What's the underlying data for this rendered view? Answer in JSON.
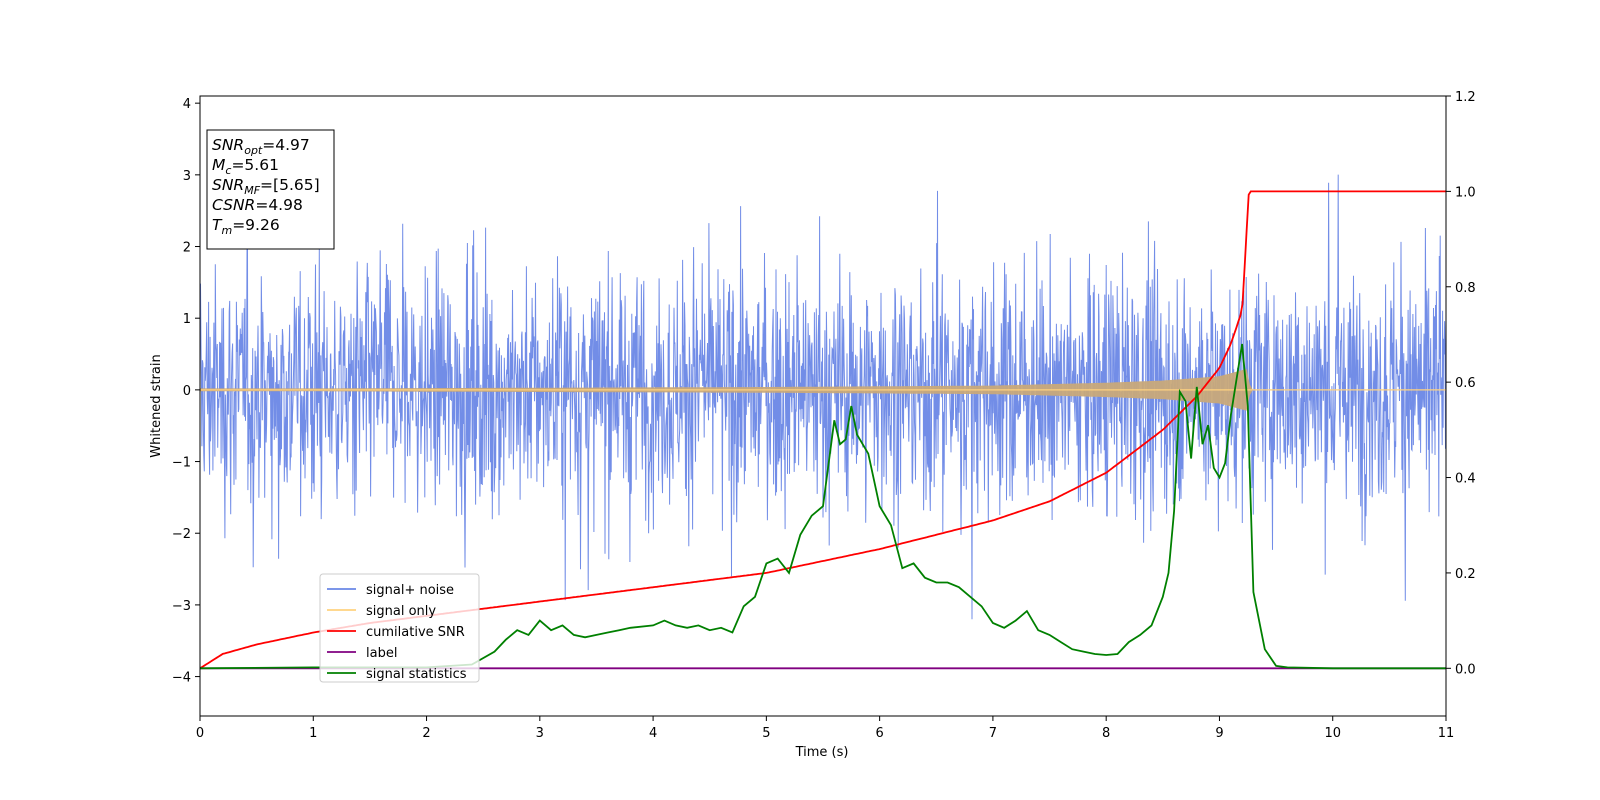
{
  "chart_data": {
    "type": "line",
    "xlabel": "Time (s)",
    "ylabel": "Whitened strain",
    "xlim": [
      0,
      11
    ],
    "ylim_left": [
      -4.55,
      4.1
    ],
    "ylim_right": [
      -0.1,
      1.2
    ],
    "x_ticks": [
      "0",
      "1",
      "2",
      "3",
      "4",
      "5",
      "6",
      "7",
      "8",
      "9",
      "10",
      "11"
    ],
    "y_ticks_left": [
      "−4",
      "−3",
      "−2",
      "−1",
      "0",
      "1",
      "2",
      "3",
      "4"
    ],
    "y_ticks_right": [
      "0.0",
      "0.2",
      "0.4",
      "0.6",
      "0.8",
      "1.0",
      "1.2"
    ],
    "grid": false,
    "legend_position": "lower-left",
    "stats_box": [
      {
        "sym": "SNR",
        "sub": "opt",
        "value": "=4.97"
      },
      {
        "sym": "M",
        "sub": "c",
        "value": "=5.61"
      },
      {
        "sym": "SNR",
        "sub": "MF",
        "value": "=[5.65]"
      },
      {
        "sym": "CSNR",
        "sub": "",
        "value": "=4.98"
      },
      {
        "sym": "T",
        "sub": "m",
        "value": "=9.26"
      }
    ],
    "series": [
      {
        "name": "signal+ noise",
        "color": "#6a87e6",
        "axis": "left",
        "description_level": "noise band approx ±1.5 with spikes to ±3.2",
        "x": [
          0,
          11
        ],
        "y_envelope": [
          -3.2,
          3.2
        ]
      },
      {
        "name": "signal only",
        "color": "#ffd27f",
        "axis": "left",
        "x": [
          0,
          1,
          2,
          3,
          4,
          5,
          6,
          7,
          8,
          8.5,
          9,
          9.26,
          9.27,
          11
        ],
        "amplitude": [
          0.02,
          0.02,
          0.025,
          0.03,
          0.035,
          0.04,
          0.05,
          0.06,
          0.1,
          0.13,
          0.19,
          0.3,
          0.0,
          0.0
        ]
      },
      {
        "name": "cumilative SNR",
        "color": "#ff0000",
        "axis": "right",
        "x": [
          0,
          0.2,
          0.5,
          1,
          1.5,
          2,
          3,
          4,
          5,
          6,
          7,
          7.5,
          8,
          8.5,
          8.8,
          9.0,
          9.1,
          9.2,
          9.26,
          11
        ],
        "y": [
          0.0,
          0.03,
          0.05,
          0.075,
          0.095,
          0.11,
          0.14,
          0.17,
          0.2,
          0.25,
          0.31,
          0.35,
          0.41,
          0.5,
          0.57,
          0.63,
          0.68,
          0.75,
          1.0,
          1.0
        ]
      },
      {
        "name": "label",
        "color": "#800080",
        "axis": "right",
        "x": [
          0,
          11
        ],
        "y": [
          0.0,
          0.0
        ]
      },
      {
        "name": "signal statistics",
        "color": "#008000",
        "axis": "right",
        "x": [
          0,
          1,
          2,
          2.4,
          2.6,
          2.7,
          2.8,
          2.9,
          3.0,
          3.1,
          3.2,
          3.3,
          3.4,
          3.5,
          3.6,
          3.7,
          3.8,
          4.0,
          4.1,
          4.2,
          4.3,
          4.4,
          4.5,
          4.6,
          4.7,
          4.8,
          4.9,
          5.0,
          5.1,
          5.2,
          5.3,
          5.4,
          5.5,
          5.6,
          5.65,
          5.7,
          5.75,
          5.8,
          5.9,
          6.0,
          6.1,
          6.2,
          6.3,
          6.4,
          6.5,
          6.6,
          6.7,
          6.8,
          6.9,
          7.0,
          7.1,
          7.2,
          7.3,
          7.4,
          7.5,
          7.6,
          7.7,
          7.8,
          7.9,
          8.0,
          8.1,
          8.2,
          8.3,
          8.4,
          8.5,
          8.55,
          8.6,
          8.65,
          8.7,
          8.75,
          8.8,
          8.85,
          8.9,
          8.95,
          9.0,
          9.05,
          9.1,
          9.2,
          9.25,
          9.3,
          9.4,
          9.5,
          9.6,
          10,
          11
        ],
        "y": [
          0.0,
          0.002,
          0.002,
          0.008,
          0.035,
          0.06,
          0.08,
          0.07,
          0.1,
          0.08,
          0.09,
          0.07,
          0.065,
          0.07,
          0.075,
          0.08,
          0.085,
          0.09,
          0.1,
          0.09,
          0.085,
          0.09,
          0.08,
          0.085,
          0.075,
          0.13,
          0.15,
          0.22,
          0.23,
          0.2,
          0.28,
          0.32,
          0.34,
          0.52,
          0.47,
          0.48,
          0.55,
          0.49,
          0.45,
          0.34,
          0.3,
          0.21,
          0.22,
          0.19,
          0.18,
          0.18,
          0.17,
          0.15,
          0.13,
          0.095,
          0.085,
          0.1,
          0.12,
          0.08,
          0.07,
          0.055,
          0.04,
          0.035,
          0.03,
          0.028,
          0.03,
          0.055,
          0.07,
          0.09,
          0.15,
          0.2,
          0.33,
          0.58,
          0.56,
          0.44,
          0.59,
          0.47,
          0.51,
          0.42,
          0.4,
          0.43,
          0.53,
          0.68,
          0.55,
          0.16,
          0.04,
          0.005,
          0.002,
          0.0,
          0.0
        ]
      }
    ]
  }
}
